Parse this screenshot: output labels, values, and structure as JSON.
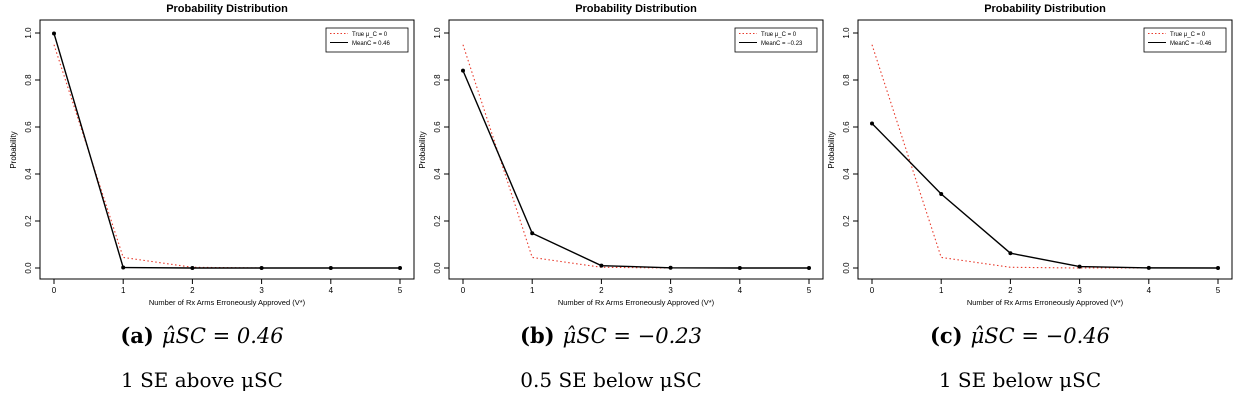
{
  "chart_data": [
    {
      "type": "line",
      "title": "Probability Distribution",
      "xlabel": "Number of Rx Arms Erroneously Approved (V*)",
      "ylabel": "Probability",
      "x_ticks": [
        "0",
        "1",
        "2",
        "3",
        "4",
        "5"
      ],
      "y_ticks": [
        "0.0",
        "0.2",
        "0.4",
        "0.6",
        "0.8",
        "1.0"
      ],
      "xlim": [
        0,
        5
      ],
      "ylim": [
        0,
        1
      ],
      "grid": false,
      "legend_position": "top-right",
      "series": [
        {
          "name": "True μ_C = 0",
          "style": "dotted",
          "color": "#e8392b",
          "x": [
            0,
            1,
            2,
            3,
            4,
            5
          ],
          "y": [
            0.95,
            0.045,
            0.003,
            0.0,
            0.0,
            0.0
          ]
        },
        {
          "name": "MeanC = 0.46",
          "style": "solid",
          "color": "#000000",
          "markers": true,
          "x": [
            0,
            1,
            2,
            3,
            4,
            5
          ],
          "y": [
            0.998,
            0.002,
            0.0,
            0.0,
            0.0,
            0.0
          ]
        }
      ],
      "caption_label": "(a)",
      "caption_estimate": "μ̂SC = 0.46",
      "caption_sub": "1 SE above μSC"
    },
    {
      "type": "line",
      "title": "Probability Distribution",
      "xlabel": "Number of Rx Arms Erroneously Approved (V*)",
      "ylabel": "Probability",
      "x_ticks": [
        "0",
        "1",
        "2",
        "3",
        "4",
        "5"
      ],
      "y_ticks": [
        "0.0",
        "0.2",
        "0.4",
        "0.6",
        "0.8",
        "1.0"
      ],
      "xlim": [
        0,
        5
      ],
      "ylim": [
        0,
        1
      ],
      "grid": false,
      "legend_position": "top-right",
      "series": [
        {
          "name": "True μ_C = 0",
          "style": "dotted",
          "color": "#e8392b",
          "x": [
            0,
            1,
            2,
            3,
            4,
            5
          ],
          "y": [
            0.95,
            0.045,
            0.003,
            0.0,
            0.0,
            0.0
          ]
        },
        {
          "name": "MeanC = −0.23",
          "style": "solid",
          "color": "#000000",
          "markers": true,
          "x": [
            0,
            1,
            2,
            3,
            4,
            5
          ],
          "y": [
            0.84,
            0.148,
            0.01,
            0.001,
            0.0,
            0.0
          ]
        }
      ],
      "caption_label": "(b)",
      "caption_estimate": "μ̂SC = −0.23",
      "caption_sub": "0.5 SE below μSC"
    },
    {
      "type": "line",
      "title": "Probability Distribution",
      "xlabel": "Number of Rx Arms Erroneously Approved (V*)",
      "ylabel": "Probability",
      "x_ticks": [
        "0",
        "1",
        "2",
        "3",
        "4",
        "5"
      ],
      "y_ticks": [
        "0.0",
        "0.2",
        "0.4",
        "0.6",
        "0.8",
        "1.0"
      ],
      "xlim": [
        0,
        5
      ],
      "ylim": [
        0,
        1
      ],
      "grid": false,
      "legend_position": "top-right",
      "series": [
        {
          "name": "True μ_C = 0",
          "style": "dotted",
          "color": "#e8392b",
          "x": [
            0,
            1,
            2,
            3,
            4,
            5
          ],
          "y": [
            0.95,
            0.045,
            0.003,
            0.0,
            0.0,
            0.0
          ]
        },
        {
          "name": "MeanC = −0.46",
          "style": "solid",
          "color": "#000000",
          "markers": true,
          "x": [
            0,
            1,
            2,
            3,
            4,
            5
          ],
          "y": [
            0.615,
            0.315,
            0.063,
            0.006,
            0.0005,
            0.0
          ]
        }
      ],
      "caption_label": "(c)",
      "caption_estimate": "μ̂SC = −0.46",
      "caption_sub": "1 SE below μSC"
    }
  ]
}
